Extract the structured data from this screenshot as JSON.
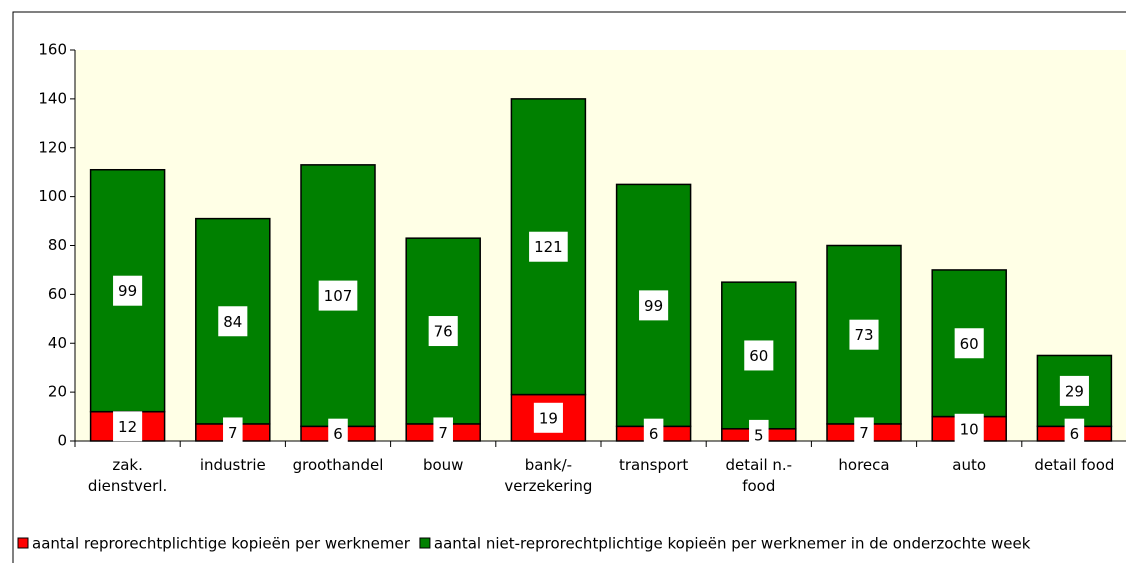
{
  "chart_data": {
    "type": "stacked_bar",
    "categories": [
      "zak.\ndienstverl.",
      "industrie",
      "groothandel",
      "bouw",
      "bank/-\nverzekering",
      "transport",
      "detail n.-\nfood",
      "horeca",
      "auto",
      "detail food"
    ],
    "series": [
      {
        "name": "aantal reprorechtplichtige kopieën per werknemer",
        "color": "#ff0000",
        "values": [
          12,
          7,
          6,
          7,
          19,
          6,
          5,
          7,
          10,
          6
        ]
      },
      {
        "name": "aantal niet-reprorechtplichtige kopieën per werknemer in de onderzochte week",
        "color": "#008000",
        "values": [
          99,
          84,
          107,
          76,
          121,
          99,
          60,
          73,
          60,
          29
        ]
      }
    ],
    "ylim": [
      0,
      160
    ],
    "yticks": [
      0,
      20,
      40,
      60,
      80,
      100,
      120,
      140,
      160
    ],
    "grid": false,
    "legend": "bottom"
  }
}
